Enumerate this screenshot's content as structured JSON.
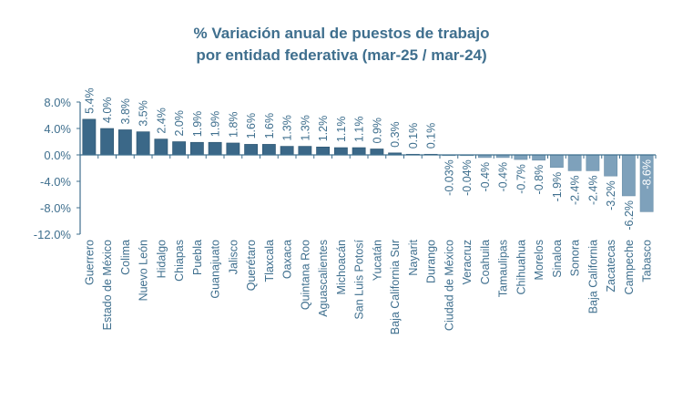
{
  "chart_data": {
    "type": "bar",
    "title": [
      "% Variación anual de puestos de trabajo",
      "por entidad federativa (mar-25 / mar-24)"
    ],
    "xlabel": "",
    "ylabel": "",
    "ylim": [
      -12,
      8
    ],
    "yticks": [
      8,
      4,
      0,
      -4,
      -8,
      -12
    ],
    "ytick_labels": [
      "8.0%",
      "4.0%",
      "0.0%",
      "-4.0%",
      "-8.0%",
      "-12.0%"
    ],
    "grid": false,
    "colors": {
      "positive": "#3b6888",
      "negative": "#7ea1bb",
      "text": "#3f6f8e"
    },
    "categories": [
      "Guerrero",
      "Estado de México",
      "Colima",
      "Nuevo León",
      "Hidalgo",
      "Chiapas",
      "Puebla",
      "Guanajuato",
      "Jalisco",
      "Querétaro",
      "Tlaxcala",
      "Oaxaca",
      "Quintana Roo",
      "Aguascalientes",
      "Michoacán",
      "San Luis Potosí",
      "Yucatán",
      "Baja California Sur",
      "Nayarit",
      "Durango",
      "Ciudad de México",
      "Veracruz",
      "Coahuila",
      "Tamaulipas",
      "Chihuahua",
      "Morelos",
      "Sinaloa",
      "Sonora",
      "Baja California",
      "Zacatecas",
      "Campeche",
      "Tabasco"
    ],
    "values": [
      5.4,
      4.0,
      3.8,
      3.5,
      2.4,
      2.0,
      1.9,
      1.9,
      1.8,
      1.6,
      1.6,
      1.3,
      1.3,
      1.2,
      1.1,
      1.1,
      0.9,
      0.3,
      0.1,
      0.1,
      -0.03,
      -0.04,
      -0.4,
      -0.4,
      -0.7,
      -0.8,
      -1.9,
      -2.4,
      -2.4,
      -3.2,
      -6.2,
      -8.6
    ],
    "data_labels": [
      "5.4%",
      "4.0%",
      "3.8%",
      "3.5%",
      "2.4%",
      "2.0%",
      "1.9%",
      "1.9%",
      "1.8%",
      "1.6%",
      "1.6%",
      "1.3%",
      "1.3%",
      "1.2%",
      "1.1%",
      "1.1%",
      "0.9%",
      "0.3%",
      "0.1%",
      "0.1%",
      "-0.03%",
      "-0.04%",
      "-0.4%",
      "-0.4%",
      "-0.7%",
      "-0.8%",
      "-1.9%",
      "-2.4%",
      "-2.4%",
      "-3.2%",
      "-6.2%",
      "-8.6%"
    ]
  }
}
